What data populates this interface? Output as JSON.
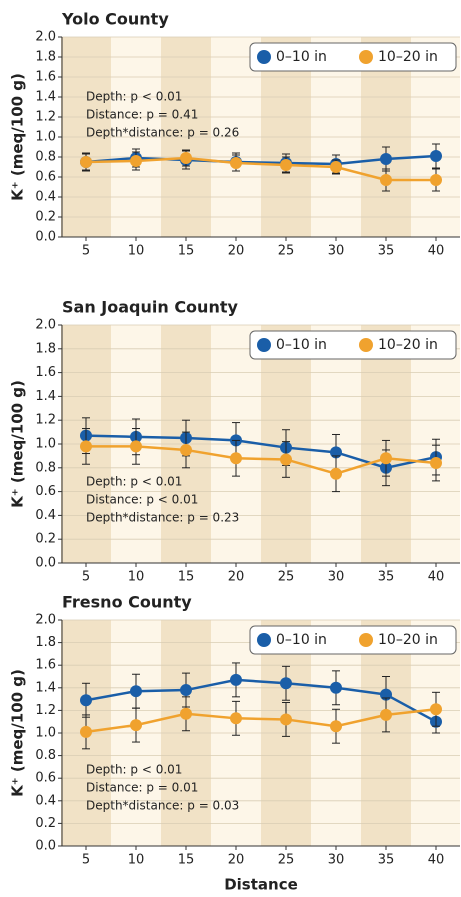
{
  "chart_data": [
    {
      "type": "line",
      "title": "Yolo County",
      "ylabel": "K⁺ (meq/100 g)",
      "x": [
        5,
        10,
        15,
        20,
        25,
        30,
        35,
        40
      ],
      "series": [
        {
          "name": "0–10 in",
          "color": "#1a5ea8",
          "values": [
            0.75,
            0.79,
            0.77,
            0.75,
            0.74,
            0.73,
            0.78,
            0.81
          ],
          "errors": [
            0.09,
            0.09,
            0.09,
            0.09,
            0.09,
            0.09,
            0.12,
            0.12
          ]
        },
        {
          "name": "10–20 in",
          "color": "#f0a22e",
          "values": [
            0.75,
            0.76,
            0.79,
            0.74,
            0.72,
            0.7,
            0.57,
            0.57
          ],
          "errors": [
            0.08,
            0.09,
            0.08,
            0.08,
            0.08,
            0.07,
            0.11,
            0.11
          ]
        }
      ],
      "annotations": [
        "Depth: p < 0.01",
        "Distance: p = 0.41",
        "Depth*distance: p = 0.26"
      ],
      "xlim": [
        2.6,
        42.4
      ],
      "xticks": [
        5,
        10,
        15,
        20,
        25,
        30,
        35,
        40
      ],
      "ylim": [
        0,
        2
      ],
      "yticks": [
        {
          "value": 0,
          "label": "0.0"
        },
        0.2,
        0.4,
        0.6,
        0.8,
        {
          "value": 1,
          "label": "1.0"
        },
        1.2,
        1.4,
        1.6,
        1.8,
        {
          "value": 2,
          "label": "2.0"
        }
      ],
      "legend": "top-right"
    },
    {
      "type": "line",
      "title": "San Joaquin County",
      "ylabel": "K⁺ (meq/100 g)",
      "x": [
        5,
        10,
        15,
        20,
        25,
        30,
        35,
        40
      ],
      "series": [
        {
          "name": "0–10 in",
          "color": "#1a5ea8",
          "values": [
            1.07,
            1.06,
            1.05,
            1.03,
            0.97,
            0.93,
            0.8,
            0.89
          ],
          "errors": [
            0.15,
            0.15,
            0.15,
            0.15,
            0.15,
            0.15,
            0.15,
            0.15
          ]
        },
        {
          "name": "10–20 in",
          "color": "#f0a22e",
          "values": [
            0.98,
            0.98,
            0.95,
            0.88,
            0.87,
            0.75,
            0.88,
            0.84
          ],
          "errors": [
            0.15,
            0.15,
            0.15,
            0.15,
            0.15,
            0.15,
            0.15,
            0.15
          ]
        }
      ],
      "annotations": [
        "Depth: p < 0.01",
        "Distance: p < 0.01",
        "Depth*distance: p = 0.23"
      ],
      "xlim": [
        2.6,
        42.4
      ],
      "xticks": [
        5,
        10,
        15,
        20,
        25,
        30,
        35,
        40
      ],
      "ylim": [
        0,
        2
      ],
      "yticks": [
        {
          "value": 0,
          "label": "0.0"
        },
        0.2,
        0.4,
        0.6,
        0.8,
        {
          "value": 1,
          "label": "1.0"
        },
        1.2,
        1.4,
        1.6,
        1.8,
        {
          "value": 2,
          "label": "2.0"
        }
      ],
      "legend": "top-right"
    },
    {
      "type": "line",
      "title": "Fresno County",
      "ylabel": "K⁺ (meq/100 g)",
      "xlabel": "Distance",
      "x": [
        5,
        10,
        15,
        20,
        25,
        30,
        35,
        40
      ],
      "series": [
        {
          "name": "0–10 in",
          "color": "#1a5ea8",
          "values": [
            1.29,
            1.37,
            1.38,
            1.47,
            1.44,
            1.4,
            1.34,
            1.1
          ],
          "errors": [
            0.15,
            0.15,
            0.15,
            0.15,
            0.15,
            0.15,
            0.16,
            0.1
          ]
        },
        {
          "name": "10–20 in",
          "color": "#f0a22e",
          "values": [
            1.01,
            1.07,
            1.17,
            1.13,
            1.12,
            1.06,
            1.16,
            1.21
          ],
          "errors": [
            0.15,
            0.15,
            0.15,
            0.15,
            0.15,
            0.15,
            0.15,
            0.15
          ]
        }
      ],
      "annotations": [
        "Depth: p < 0.01",
        "Distance: p = 0.01",
        "Depth*distance: p = 0.03"
      ],
      "xlim": [
        2.6,
        42.4
      ],
      "xticks": [
        5,
        10,
        15,
        20,
        25,
        30,
        35,
        40
      ],
      "ylim": [
        0,
        2
      ],
      "yticks": [
        {
          "value": 0,
          "label": "0.0"
        },
        0.2,
        0.4,
        0.6,
        0.8,
        {
          "value": 1,
          "label": "1.0"
        },
        1.2,
        1.4,
        1.6,
        1.8,
        {
          "value": 2,
          "label": "2.0"
        }
      ],
      "legend": "top-right"
    }
  ]
}
